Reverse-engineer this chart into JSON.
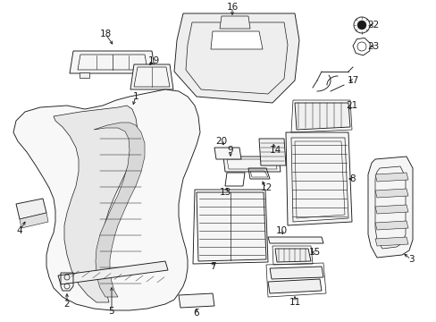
{
  "bg_color": "#ffffff",
  "line_color": "#1a1a1a",
  "fig_width": 4.89,
  "fig_height": 3.6,
  "dpi": 100,
  "label_fs": 7.5,
  "lw": 0.65
}
